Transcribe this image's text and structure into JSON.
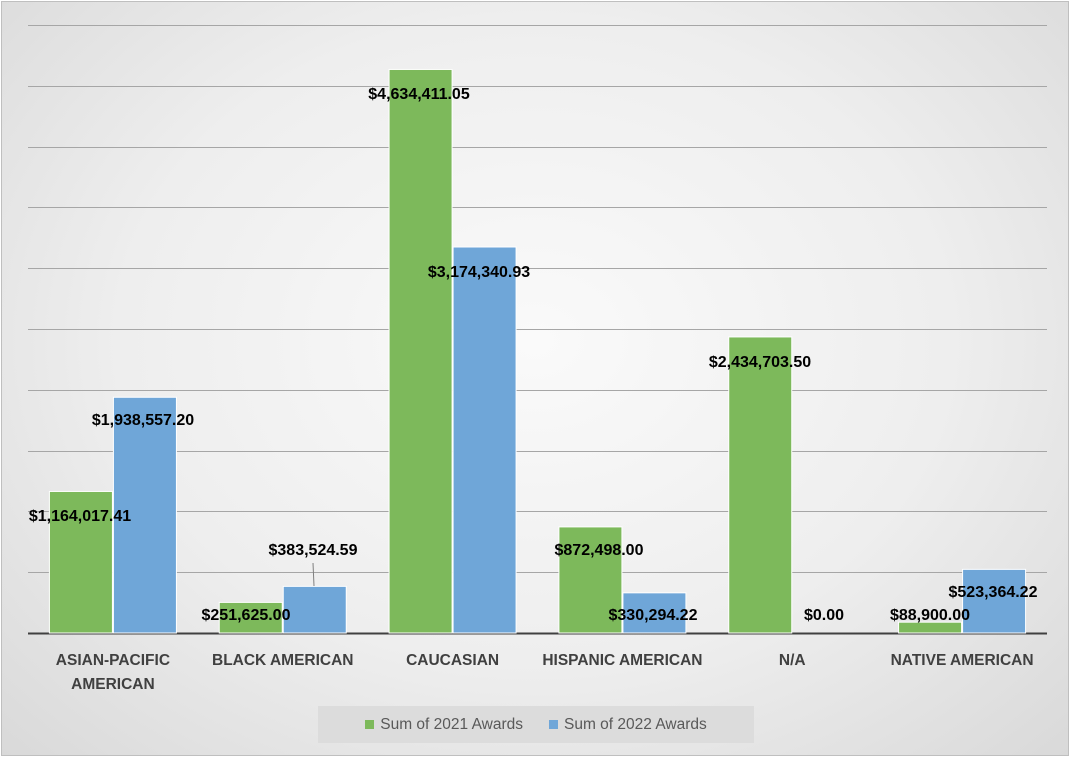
{
  "chart_data": {
    "type": "bar",
    "categories": [
      [
        "ASIAN-PACIFIC",
        "AMERICAN"
      ],
      [
        "BLACK AMERICAN"
      ],
      [
        "CAUCASIAN"
      ],
      [
        "HISPANIC AMERICAN"
      ],
      [
        "N/A"
      ],
      [
        "NATIVE AMERICAN"
      ]
    ],
    "series": [
      {
        "name": "Sum of 2021 Awards",
        "color": "#7db95b",
        "values": [
          1164017.41,
          251625.0,
          4634411.05,
          872498.0,
          2434703.5,
          88900.0
        ],
        "labels": [
          "$1,164,017.41",
          "$251,625.00",
          "$4,634,411.05",
          "$872,498.00",
          "$2,434,703.50",
          "$88,900.00"
        ]
      },
      {
        "name": "Sum of 2022 Awards",
        "color": "#6fa6d8",
        "values": [
          1938557.2,
          383524.59,
          3174340.93,
          330294.22,
          0.0,
          523364.22
        ],
        "labels": [
          "$1,938,557.20",
          "$383,524.59",
          "$3,174,340.93",
          "$330,294.22",
          "$0.00",
          "$523,364.22"
        ]
      }
    ],
    "ylim": [
      0,
      5000000
    ],
    "grid": true,
    "legend_position": "bottom"
  }
}
